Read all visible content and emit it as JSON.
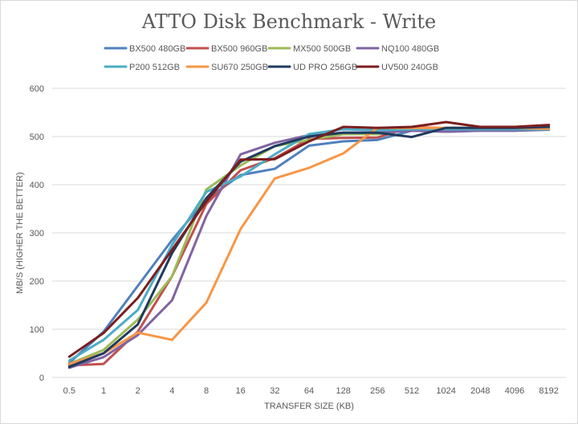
{
  "chart_data": {
    "type": "line",
    "title": "ATTO Disk Benchmark - Write",
    "xlabel": "TRANSFER SIZE (KB)",
    "ylabel": "MB/S (HIGHER THE BETTER)",
    "ylim": [
      0,
      600
    ],
    "yticks": [
      0,
      100,
      200,
      300,
      400,
      500,
      600
    ],
    "grid": true,
    "legend_position": "top",
    "categories": [
      "0.5",
      "1",
      "2",
      "4",
      "8",
      "16",
      "32",
      "64",
      "128",
      "256",
      "512",
      "1024",
      "2048",
      "4096",
      "8192"
    ],
    "series": [
      {
        "name": "BX500 480GB",
        "color": "#4f81bd",
        "values": [
          30,
          95,
          190,
          285,
          370,
          420,
          433,
          481,
          490,
          493,
          512,
          510,
          512,
          512,
          514
        ]
      },
      {
        "name": "BX500 960GB",
        "color": "#c0504d",
        "values": [
          25,
          28,
          95,
          210,
          360,
          430,
          455,
          495,
          497,
          498,
          520,
          517,
          517,
          517,
          517
        ]
      },
      {
        "name": "MX500 500GB",
        "color": "#9bbb59",
        "values": [
          28,
          57,
          120,
          210,
          390,
          440,
          480,
          493,
          505,
          505,
          515,
          518,
          518,
          518,
          518
        ]
      },
      {
        "name": "NQ100 480GB",
        "color": "#8064a2",
        "values": [
          20,
          42,
          88,
          160,
          335,
          463,
          487,
          503,
          508,
          508,
          512,
          510,
          512,
          512,
          515
        ]
      },
      {
        "name": "P200 512GB",
        "color": "#4bacc6",
        "values": [
          35,
          78,
          140,
          275,
          385,
          417,
          463,
          505,
          515,
          513,
          515,
          515,
          515,
          515,
          515
        ]
      },
      {
        "name": "SU670 250GB",
        "color": "#f79646",
        "values": [
          28,
          50,
          93,
          78,
          155,
          308,
          413,
          435,
          465,
          518,
          518,
          518,
          518,
          518,
          516
        ]
      },
      {
        "name": "UD PRO 256GB",
        "color": "#1f3a5f",
        "values": [
          22,
          50,
          110,
          258,
          372,
          448,
          480,
          500,
          508,
          508,
          499,
          518,
          518,
          518,
          520
        ]
      },
      {
        "name": "UV500 240GB",
        "color": "#7b1e1e",
        "values": [
          43,
          92,
          165,
          265,
          365,
          452,
          453,
          490,
          520,
          518,
          520,
          530,
          520,
          520,
          524
        ]
      }
    ]
  }
}
